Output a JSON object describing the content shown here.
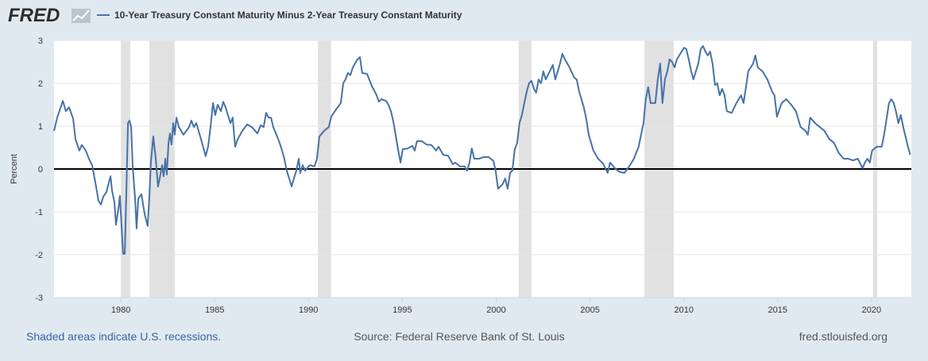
{
  "brand": "FRED",
  "source": "Source: Federal Reserve Bank of St. Louis",
  "recession_note": "Shaded areas indicate U.S. recessions.",
  "site": "fred.stlouisfed.org",
  "chart_data": {
    "type": "line",
    "y_label": "Percent",
    "xlim": [
      1976.44,
      2022.12
    ],
    "xticks": [
      1980,
      1985,
      1990,
      1995,
      2000,
      2005,
      2010,
      2015,
      2020
    ],
    "ylim": [
      -3,
      3
    ],
    "yticks": [
      -3,
      -2,
      -1,
      0,
      1,
      2,
      3
    ],
    "grid": true,
    "recession_color": "#e1e1e1",
    "recessions": [
      [
        1980.0,
        1980.5
      ],
      [
        1981.52,
        1982.87
      ],
      [
        1990.5,
        1991.2
      ],
      [
        2001.2,
        2001.88
      ],
      [
        2007.9,
        2009.46
      ],
      [
        2020.08,
        2020.3
      ]
    ],
    "x": [
      1976.44,
      1976.61,
      1976.91,
      1977.07,
      1977.24,
      1977.46,
      1977.58,
      1977.79,
      1977.92,
      1978.13,
      1978.3,
      1978.47,
      1978.64,
      1978.81,
      1978.94,
      1979.06,
      1979.23,
      1979.45,
      1979.53,
      1979.66,
      1979.74,
      1979.87,
      1979.95,
      1980.12,
      1980.21,
      1980.29,
      1980.38,
      1980.46,
      1980.55,
      1980.63,
      1980.76,
      1980.84,
      1980.93,
      1981.1,
      1981.27,
      1981.43,
      1981.52,
      1981.6,
      1981.73,
      1981.86,
      1981.98,
      1982.07,
      1982.2,
      1982.28,
      1982.37,
      1982.45,
      1982.54,
      1982.62,
      1982.7,
      1982.79,
      1982.87,
      1982.96,
      1983.09,
      1983.34,
      1983.64,
      1983.76,
      1983.89,
      1984.02,
      1984.27,
      1984.52,
      1984.65,
      1984.78,
      1984.91,
      1985.03,
      1985.16,
      1985.33,
      1985.46,
      1985.58,
      1985.84,
      1985.96,
      1986.09,
      1986.22,
      1986.47,
      1986.73,
      1986.98,
      1987.28,
      1987.45,
      1987.61,
      1987.74,
      1987.87,
      1988.0,
      1988.12,
      1988.29,
      1988.46,
      1988.59,
      1988.71,
      1988.84,
      1988.97,
      1989.1,
      1989.22,
      1989.35,
      1989.48,
      1989.56,
      1989.69,
      1989.82,
      1990.07,
      1990.32,
      1990.45,
      1990.58,
      1990.83,
      1991.08,
      1991.21,
      1991.47,
      1991.72,
      1991.85,
      1991.97,
      1992.1,
      1992.23,
      1992.36,
      1992.61,
      1992.74,
      1992.86,
      1993.12,
      1993.37,
      1993.63,
      1993.75,
      1993.88,
      1994.13,
      1994.26,
      1994.39,
      1994.51,
      1994.64,
      1994.77,
      1994.9,
      1995.02,
      1995.28,
      1995.53,
      1995.66,
      1995.78,
      1996.04,
      1996.29,
      1996.55,
      1996.8,
      1996.93,
      1997.18,
      1997.44,
      1997.69,
      1997.82,
      1998.07,
      1998.32,
      1998.45,
      1998.58,
      1998.7,
      1998.83,
      1999.09,
      1999.34,
      1999.59,
      1999.85,
      1999.97,
      2000.1,
      2000.35,
      2000.48,
      2000.61,
      2000.74,
      2000.86,
      2000.99,
      2001.12,
      2001.24,
      2001.37,
      2001.5,
      2001.63,
      2001.75,
      2001.88,
      2002.01,
      2002.13,
      2002.26,
      2002.39,
      2002.51,
      2002.64,
      2002.89,
      2003.02,
      2003.15,
      2003.4,
      2003.53,
      2003.66,
      2003.91,
      2004.16,
      2004.29,
      2004.42,
      2004.67,
      2004.8,
      2004.93,
      2005.18,
      2005.43,
      2005.69,
      2005.94,
      2006.07,
      2006.32,
      2006.58,
      2006.83,
      2007.09,
      2007.34,
      2007.59,
      2007.72,
      2007.85,
      2007.97,
      2008.1,
      2008.23,
      2008.48,
      2008.61,
      2008.74,
      2008.86,
      2008.99,
      2009.12,
      2009.24,
      2009.37,
      2009.5,
      2009.63,
      2009.88,
      2010.01,
      2010.13,
      2010.26,
      2010.39,
      2010.51,
      2010.64,
      2010.77,
      2010.9,
      2011.02,
      2011.15,
      2011.28,
      2011.4,
      2011.53,
      2011.66,
      2011.78,
      2011.91,
      2012.04,
      2012.17,
      2012.29,
      2012.55,
      2012.8,
      2013.05,
      2013.18,
      2013.31,
      2013.43,
      2013.69,
      2013.81,
      2013.94,
      2014.19,
      2014.45,
      2014.7,
      2014.83,
      2014.96,
      2015.21,
      2015.46,
      2015.72,
      2015.97,
      2016.22,
      2016.48,
      2016.61,
      2016.73,
      2016.99,
      2017.24,
      2017.49,
      2017.75,
      2018.0,
      2018.26,
      2018.51,
      2018.76,
      2019.02,
      2019.27,
      2019.52,
      2019.65,
      2019.78,
      2019.91,
      2020.03,
      2020.28,
      2020.54,
      2020.67,
      2020.8,
      2020.93,
      2021.05,
      2021.18,
      2021.3,
      2021.43,
      2021.56,
      2021.69,
      2021.81,
      2021.94,
      2022.06
    ],
    "series": [
      {
        "name": "10-Year Treasury Constant Maturity Minus 2-Year Treasury Constant Maturity",
        "color": "#4572a7",
        "values": [
          0.89,
          1.2,
          1.59,
          1.35,
          1.44,
          1.17,
          0.7,
          0.43,
          0.56,
          0.43,
          0.24,
          0.09,
          -0.31,
          -0.74,
          -0.83,
          -0.65,
          -0.54,
          -0.17,
          -0.5,
          -0.78,
          -1.3,
          -0.93,
          -0.63,
          -1.98,
          -1.98,
          -0.59,
          1.07,
          1.13,
          0.98,
          0.06,
          -0.69,
          -1.39,
          -0.69,
          -0.59,
          -1.06,
          -1.33,
          -0.65,
          0.15,
          0.76,
          0.24,
          -0.41,
          -0.22,
          0.09,
          -0.17,
          0.24,
          -0.13,
          0.61,
          0.83,
          0.57,
          1.07,
          0.8,
          1.2,
          0.98,
          0.8,
          0.98,
          1.13,
          0.98,
          1.07,
          0.7,
          0.3,
          0.52,
          0.98,
          1.54,
          1.26,
          1.5,
          1.35,
          1.57,
          1.44,
          1.07,
          1.2,
          0.52,
          0.69,
          0.89,
          1.04,
          0.98,
          0.83,
          1.02,
          0.98,
          1.31,
          1.2,
          1.2,
          0.98,
          0.8,
          0.61,
          0.43,
          0.24,
          -0.04,
          -0.22,
          -0.41,
          -0.22,
          -0.04,
          0.24,
          -0.09,
          0.09,
          -0.04,
          0.09,
          0.06,
          0.24,
          0.76,
          0.89,
          0.98,
          1.22,
          1.39,
          1.54,
          2.0,
          2.09,
          2.24,
          2.19,
          2.37,
          2.56,
          2.61,
          2.24,
          2.22,
          1.94,
          1.72,
          1.57,
          1.63,
          1.59,
          1.5,
          1.35,
          1.13,
          0.8,
          0.46,
          0.15,
          0.46,
          0.48,
          0.54,
          0.43,
          0.65,
          0.65,
          0.57,
          0.56,
          0.43,
          0.52,
          0.33,
          0.31,
          0.11,
          0.15,
          0.06,
          0.06,
          -0.04,
          0.15,
          0.48,
          0.24,
          0.24,
          0.28,
          0.28,
          0.19,
          -0.04,
          -0.46,
          -0.35,
          -0.22,
          -0.46,
          -0.09,
          -0.04,
          0.46,
          0.61,
          1.07,
          1.26,
          1.54,
          1.81,
          2.0,
          2.06,
          1.87,
          1.78,
          2.09,
          2.0,
          2.28,
          2.09,
          2.31,
          2.43,
          2.09,
          2.46,
          2.69,
          2.56,
          2.37,
          2.13,
          2.09,
          1.81,
          1.44,
          1.17,
          0.8,
          0.43,
          0.24,
          0.13,
          -0.09,
          0.15,
          0.02,
          -0.07,
          -0.09,
          0.06,
          0.24,
          0.52,
          0.8,
          1.07,
          1.63,
          1.91,
          1.54,
          1.54,
          2.09,
          2.46,
          1.54,
          2.09,
          2.28,
          2.56,
          2.5,
          2.37,
          2.56,
          2.74,
          2.83,
          2.8,
          2.56,
          2.28,
          2.09,
          2.28,
          2.46,
          2.8,
          2.87,
          2.74,
          2.65,
          2.74,
          2.46,
          1.96,
          2.0,
          1.72,
          1.87,
          1.72,
          1.35,
          1.31,
          1.54,
          1.72,
          1.54,
          1.91,
          2.28,
          2.46,
          2.65,
          2.37,
          2.28,
          2.09,
          1.81,
          1.72,
          1.22,
          1.54,
          1.63,
          1.5,
          1.35,
          0.98,
          0.89,
          0.8,
          1.2,
          1.07,
          0.98,
          0.89,
          0.7,
          0.61,
          0.37,
          0.24,
          0.24,
          0.2,
          0.24,
          0.02,
          0.15,
          0.24,
          0.15,
          0.43,
          0.52,
          0.52,
          0.8,
          1.17,
          1.54,
          1.63,
          1.54,
          1.35,
          1.07,
          1.26,
          0.98,
          0.76,
          0.52,
          0.33
        ]
      }
    ]
  }
}
